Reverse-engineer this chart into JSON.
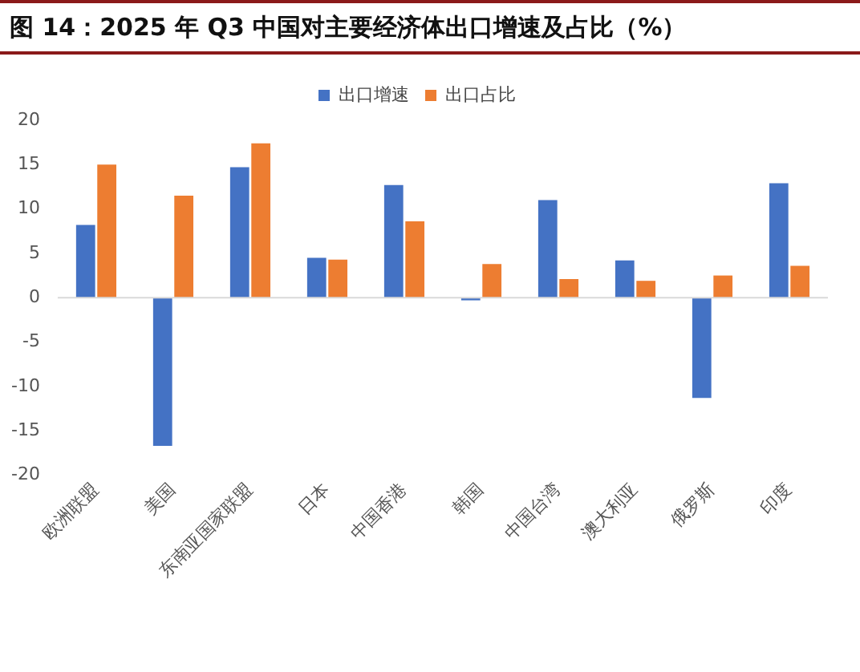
{
  "chart_data": {
    "type": "bar",
    "title": "图 14：2025 年 Q3 中国对主要经济体出口增速及占比（%）",
    "categories": [
      "欧洲联盟",
      "美国",
      "东南亚国家联盟",
      "日本",
      "中国香港",
      "韩国",
      "中国台湾",
      "澳大利亚",
      "俄罗斯",
      "印度"
    ],
    "series": [
      {
        "name": "出口增速",
        "color": "#4472c4",
        "values": [
          8.2,
          -16.7,
          14.7,
          4.5,
          12.7,
          -0.3,
          11.0,
          4.2,
          -11.3,
          12.9
        ]
      },
      {
        "name": "出口占比",
        "color": "#ed7d31",
        "values": [
          15.0,
          11.5,
          17.4,
          4.3,
          8.6,
          3.8,
          2.1,
          1.9,
          2.5,
          3.6
        ]
      }
    ],
    "ylim": [
      -20,
      20
    ],
    "yticks": [
      -20,
      -15,
      -10,
      -5,
      0,
      5,
      10,
      15,
      20
    ],
    "grid": false,
    "legend": "top",
    "ref_lines": [
      {
        "axis": "y",
        "value": 0,
        "color": "#d9d9d9"
      }
    ]
  }
}
